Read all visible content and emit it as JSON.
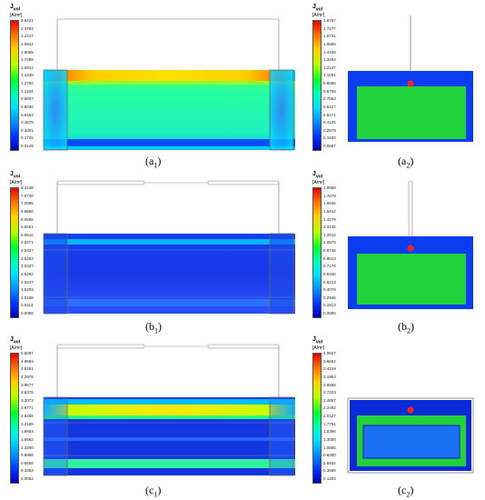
{
  "legend_title": "J",
  "legend_title_sub": "vol",
  "legend_unit": "[A/m²]",
  "panels": [
    {
      "id": "a1",
      "caption_main": "(a",
      "caption_sub": "1",
      "caption_close": ")",
      "ticks": [
        "2.6421",
        "2.3794",
        "2.2217",
        "2.0641",
        "1.9065",
        "1.7489",
        "1.5912",
        "1.4336",
        "1.2760",
        "1.1183",
        "0.9607",
        "0.8030",
        "0.6454",
        "0.4878",
        "0.3301",
        "0.1725",
        "0.0149"
      ]
    },
    {
      "id": "a2",
      "caption_main": "(a",
      "caption_sub": "2",
      "caption_close": ")",
      "ticks": [
        "1.8787",
        "1.7277",
        "1.5731",
        "1.5585",
        "1.4439",
        "1.3293",
        "1.2147",
        "1.1001",
        "0.9856",
        "0.8708",
        "0.7563",
        "0.6417",
        "0.5271",
        "0.4125",
        "0.2979",
        "0.1833",
        "0.0687"
      ]
    },
    {
      "id": "b1",
      "caption_main": "(b",
      "caption_sub": "1",
      "caption_close": ")",
      "ticks": [
        "8.4146",
        "7.5740",
        "7.0695",
        "6.6650",
        "6.0606",
        "5.5561",
        "5.0516",
        "4.5471",
        "4.0427",
        "3.5382",
        "3.0337",
        "2.5292",
        "2.0247",
        "1.5203",
        "1.0158",
        "0.5113",
        "0.0068"
      ]
    },
    {
      "id": "b2",
      "caption_main": "(b",
      "caption_sub": "2",
      "caption_close": ")",
      "ticks": [
        "1.9668",
        "1.7679",
        "1.6546",
        "1.5412",
        "1.4279",
        "1.3146",
        "1.2012",
        "1.0879",
        "0.9746",
        "0.8613",
        "0.7479",
        "0.6346",
        "0.5213",
        "0.4079",
        "0.2946",
        "0.1813",
        "0.0680"
      ]
    },
    {
      "id": "c1",
      "caption_main": "(c",
      "caption_sub": "1",
      "caption_close": ")",
      "ticks": [
        "5.5087",
        "4.9683",
        "4.6281",
        "4.2978",
        "3.9677",
        "3.6375",
        "3.3073",
        "2.9771",
        "2.6468",
        "2.3166",
        "1.9864",
        "1.6562",
        "1.3260",
        "0.9958",
        "0.6656",
        "0.3354",
        "0.0052"
      ]
    },
    {
      "id": "c2",
      "caption_main": "(c",
      "caption_sub": "2",
      "caption_close": ")",
      "ticks": [
        "4.0627",
        "3.6664",
        "3.4319",
        "3.1953",
        "2.9588",
        "2.7223",
        "2.4857",
        "2.2492",
        "2.0127",
        "1.7761",
        "1.5396",
        "1.3030",
        "1.0665",
        "0.8300",
        "0.5934",
        "0.3569",
        "0.1203"
      ]
    }
  ]
}
